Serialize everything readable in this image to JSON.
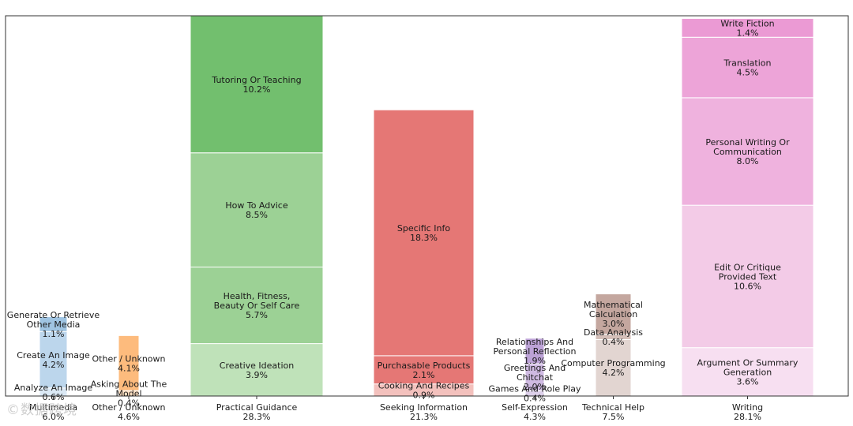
{
  "chart_data": {
    "type": "bar",
    "stacked": true,
    "ylim": [
      0,
      28.3
    ],
    "categories": [
      {
        "name": "Multimedia",
        "total_label": "6.0%",
        "color": "#1f77b4",
        "segments": [
          {
            "label": "Analyze An Image",
            "value": 0.6,
            "pct": "0.6%",
            "color": "#dbe9f5"
          },
          {
            "label": "Create An Image",
            "value": 4.2,
            "pct": "4.2%",
            "color": "#bcd6ec"
          },
          {
            "label": "Generate Or Retrieve Other Media",
            "value": 1.1,
            "pct": "1.1%",
            "color": "#9fc4e2"
          }
        ]
      },
      {
        "name": "Other / Unknown",
        "total_label": "4.6%",
        "color": "#ff7f0e",
        "segments": [
          {
            "label": "Asking About The Model",
            "value": 0.4,
            "pct": "0.4%",
            "color": "#fedec0"
          },
          {
            "label": "Other / Unknown",
            "value": 4.1,
            "pct": "4.1%",
            "color": "#fdbb7d"
          }
        ]
      },
      {
        "name": "Practical Guidance",
        "total_label": "28.3%",
        "color": "#2ca02c",
        "segments": [
          {
            "label": "Creative Ideation",
            "value": 3.9,
            "pct": "3.9%",
            "color": "#bfe2b9"
          },
          {
            "label": "Health, Fitness, Beauty Or Self Care",
            "value": 5.7,
            "pct": "5.7%",
            "color": "#9cd195"
          },
          {
            "label": "How To Advice",
            "value": 8.5,
            "pct": "8.5%",
            "color": "#9cd195"
          },
          {
            "label": "Tutoring Or Teaching",
            "value": 10.2,
            "pct": "10.2%",
            "color": "#72bf6e"
          }
        ]
      },
      {
        "name": "Seeking Information",
        "total_label": "21.3%",
        "color": "#d62728",
        "segments": [
          {
            "label": "Cooking And Recipes",
            "value": 0.9,
            "pct": "0.9%",
            "color": "#f3c1bd"
          },
          {
            "label": "Purchasable Products",
            "value": 2.1,
            "pct": "2.1%",
            "color": "#e57775"
          },
          {
            "label": "Specific Info",
            "value": 18.3,
            "pct": "18.3%",
            "color": "#e57775"
          }
        ]
      },
      {
        "name": "Self-Expression",
        "total_label": "4.3%",
        "color": "#9467bd",
        "segments": [
          {
            "label": "Games And Role Play",
            "value": 0.4,
            "pct": "0.4%",
            "color": "#ddd0ea"
          },
          {
            "label": "Greetings And Chitchat",
            "value": 2.0,
            "pct": "2.0%",
            "color": "#cfbae2"
          },
          {
            "label": "Relationships And Personal Reflection",
            "value": 1.9,
            "pct": "1.9%",
            "color": "#bca2d6"
          }
        ]
      },
      {
        "name": "Technical Help",
        "total_label": "7.5%",
        "color": "#8c564b",
        "segments": [
          {
            "label": "Computer Programming",
            "value": 4.2,
            "pct": "4.2%",
            "color": "#e2d5d1"
          },
          {
            "label": "Data Analysis",
            "value": 0.4,
            "pct": "0.4%",
            "color": "#d4bfb9"
          },
          {
            "label": "Mathematical Calculation",
            "value": 3.0,
            "pct": "3.0%",
            "color": "#c4a79f"
          }
        ]
      },
      {
        "name": "Writing",
        "total_label": "28.1%",
        "color": "#e377c2",
        "segments": [
          {
            "label": "Argument Or Summary Generation",
            "value": 3.6,
            "pct": "3.6%",
            "color": "#f7dff1"
          },
          {
            "label": "Edit Or Critique Provided Text",
            "value": 10.6,
            "pct": "10.6%",
            "color": "#f3cbe7"
          },
          {
            "label": "Personal Writing Or Communication",
            "value": 8.0,
            "pct": "8.0%",
            "color": "#efb2de"
          },
          {
            "label": "Translation",
            "value": 4.5,
            "pct": "4.5%",
            "color": "#eda4d8"
          },
          {
            "label": "Write Fiction",
            "value": 1.4,
            "pct": "1.4%",
            "color": "#eb9ad4"
          }
        ]
      }
    ],
    "title": "",
    "xlabel": "",
    "ylabel": ""
  },
  "watermark": "©数据跨境"
}
